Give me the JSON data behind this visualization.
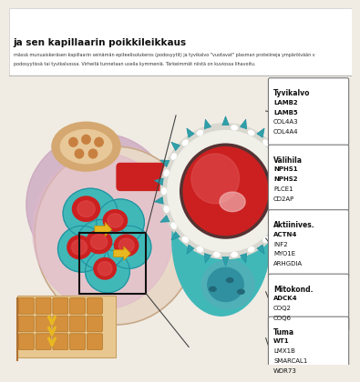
{
  "background_color": "#f0ece4",
  "title": "ja sen kapillaarin poikkileikkaus",
  "subtitle1": "mässä munuaiskeräsen kapillaarin seinämän epiteelisolukeros (podosyytit) ja tyvikalvo \"vuotavat\" plasman proteiineja ympäröivään v",
  "subtitle2": "podosyytissä tai tyvikalvossa. Virheitä tunnetaan useila kymmeniä. Tärkeimmät niistä on kuviossa lihavoitu.",
  "boxes": [
    {
      "label": "Tyvikalvo",
      "genes": [
        "LAMB2",
        "LAMB5",
        "COL4A3",
        "COL4A4"
      ],
      "bold": [
        true,
        true,
        false,
        false
      ]
    },
    {
      "label": "Välihila",
      "genes": [
        "NPHS1",
        "NPHS2",
        "PLCE1",
        "CD2AP"
      ],
      "bold": [
        true,
        true,
        false,
        false
      ]
    },
    {
      "label": "Aktiinives.",
      "genes": [
        "ACTN4",
        "INF2",
        "MYO1E",
        "ARHGDIA"
      ],
      "bold": [
        true,
        false,
        false,
        false
      ]
    },
    {
      "label": "Mitokond.",
      "genes": [
        "ADCK4",
        "COQ2",
        "COQ6"
      ],
      "bold": [
        true,
        false,
        false
      ]
    },
    {
      "label": "Tuma",
      "genes": [
        "WT1",
        "LMX1B",
        "SMARCAL1",
        "WDR73"
      ],
      "bold": [
        true,
        false,
        false,
        false
      ]
    }
  ],
  "colors": {
    "glom_outer": "#c8a8c0",
    "glom_inner": "#ddb8cc",
    "glom_circle_bg": "#e8d8c8",
    "glom_circle_border": "#c8a888",
    "teal_main": "#40b8b8",
    "teal_dark": "#2090a0",
    "teal_spikes": "#30a0a8",
    "blood_red": "#cc2020",
    "blood_light": "#e87878",
    "blood_pink": "#f0b0b0",
    "gbm_white": "#e8e8e0",
    "gbm_gray": "#c8c8b8",
    "nucleus_teal": "#60c0c0",
    "nucleus_dark": "#3090a0",
    "vessel_red": "#cc2020",
    "orange_bg": "#e8c090",
    "orange_dots": "#d09050",
    "yellow_arrow": "#e8b820",
    "tubule_orange": "#e8a050",
    "box_bg": "#ffffff",
    "box_border": "#666666",
    "line_color": "#333333"
  }
}
